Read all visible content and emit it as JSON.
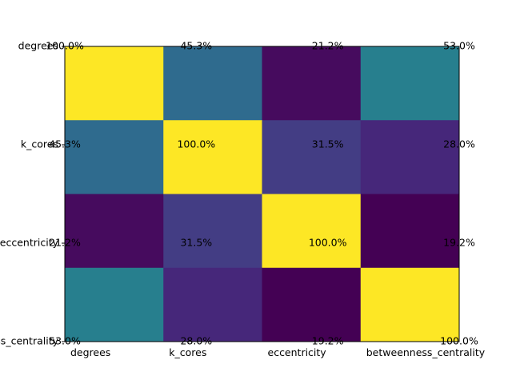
{
  "chart_data": {
    "type": "heatmap",
    "title": "",
    "xlabel": "",
    "ylabel": "",
    "row_labels": [
      "degrees",
      "k_cores",
      "eccentricity",
      "betweenness_centrality"
    ],
    "col_labels": [
      "degrees",
      "k_cores",
      "eccentricity",
      "betweenness_centrality"
    ],
    "values": [
      [
        100.0,
        45.3,
        21.2,
        53.0
      ],
      [
        45.3,
        100.0,
        31.5,
        28.0
      ],
      [
        21.2,
        31.5,
        100.0,
        19.2
      ],
      [
        53.0,
        28.0,
        19.2,
        100.0
      ]
    ],
    "cell_labels": [
      [
        "100.0%",
        "45.3%",
        "21.2%",
        "53.0%"
      ],
      [
        "45.3%",
        "100.0%",
        "31.5%",
        "28.0%"
      ],
      [
        "21.2%",
        "31.5%",
        "100.0%",
        "19.2%"
      ],
      [
        "53.0%",
        "28.0%",
        "19.2%",
        "100.0%"
      ]
    ],
    "colormap": "viridis",
    "colors": [
      [
        "#fde725",
        "#2f6b8e",
        "#460b5e",
        "#277f8e"
      ],
      [
        "#2f6b8e",
        "#fde725",
        "#433d84",
        "#46277a"
      ],
      [
        "#460b5e",
        "#433d84",
        "#fde725",
        "#440154"
      ],
      [
        "#277f8e",
        "#46277a",
        "#440154",
        "#fde725"
      ]
    ],
    "grid": false,
    "legend": "none"
  }
}
